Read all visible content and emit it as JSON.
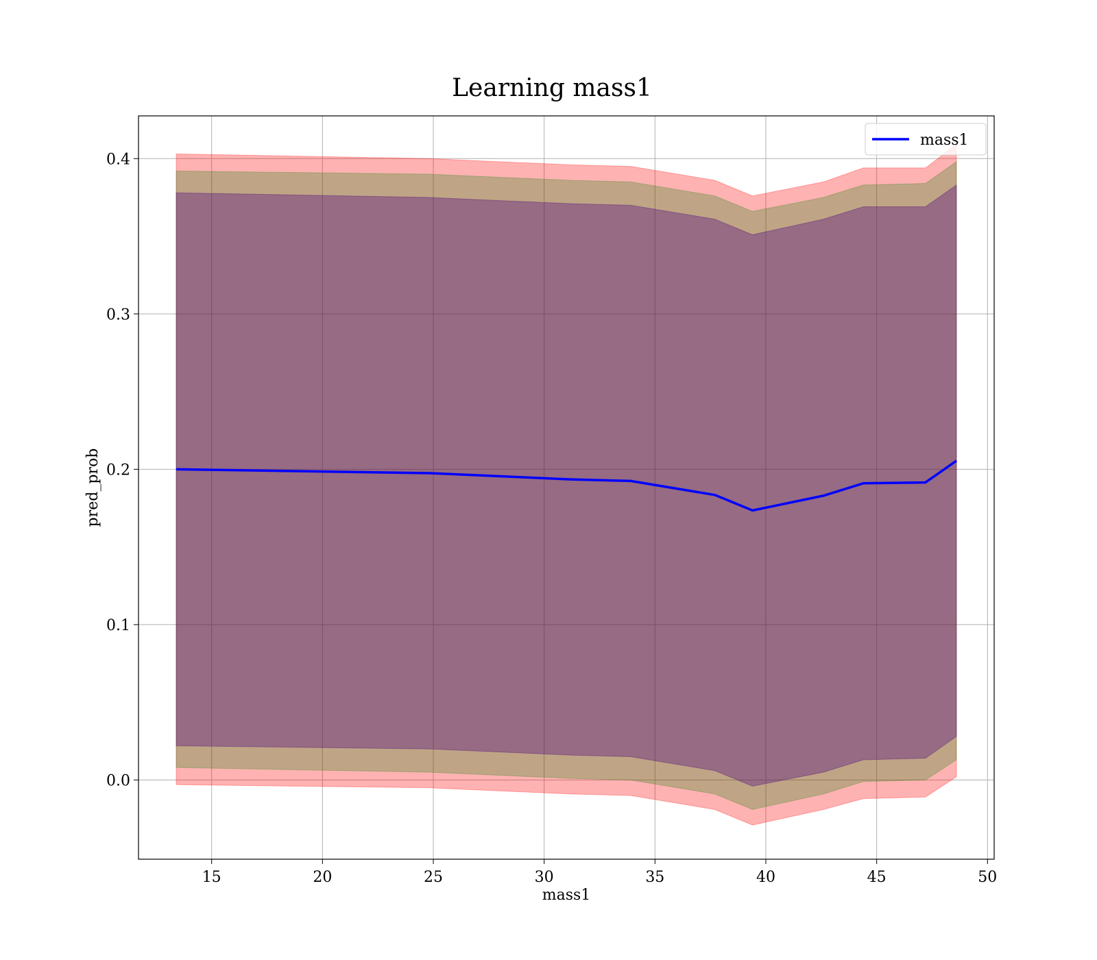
{
  "chart_data": {
    "type": "area",
    "title": "Learning mass1",
    "xlabel": "mass1",
    "ylabel": "pred_prob",
    "xlim": [
      11.7,
      50.3
    ],
    "ylim": [
      -0.051,
      0.4275
    ],
    "xticks": [
      15,
      20,
      25,
      30,
      35,
      40,
      45,
      50
    ],
    "xtick_labels": [
      "15",
      "20",
      "25",
      "30",
      "35",
      "40",
      "45",
      "50"
    ],
    "yticks": [
      0.0,
      0.1,
      0.2,
      0.3,
      0.4
    ],
    "ytick_labels": [
      "0.0",
      "0.1",
      "0.2",
      "0.3",
      "0.4"
    ],
    "grid": true,
    "legend_position": "top-right",
    "x": [
      13.4,
      24.8,
      31.2,
      33.9,
      37.7,
      39.4,
      42.6,
      44.4,
      47.2,
      48.6
    ],
    "series": [
      {
        "name": "mass1",
        "color": "#0000ff",
        "values": [
          0.2,
          0.1975,
          0.1935,
          0.1925,
          0.1835,
          0.1735,
          0.183,
          0.191,
          0.1915,
          0.2055
        ]
      }
    ],
    "bands": [
      {
        "color": "#ff0000",
        "alpha": 0.3,
        "lower": [
          -0.003,
          -0.005,
          -0.009,
          -0.01,
          -0.019,
          -0.029,
          -0.019,
          -0.012,
          -0.011,
          0.002
        ],
        "upper": [
          0.403,
          0.4,
          0.396,
          0.395,
          0.386,
          0.376,
          0.385,
          0.394,
          0.394,
          0.409
        ]
      },
      {
        "color": "#008000",
        "alpha": 0.25,
        "lower": [
          0.008,
          0.005,
          0.001,
          0.0,
          -0.009,
          -0.019,
          -0.009,
          -0.001,
          0.0,
          0.013
        ],
        "upper": [
          0.392,
          0.39,
          0.386,
          0.385,
          0.376,
          0.366,
          0.375,
          0.383,
          0.384,
          0.398
        ]
      },
      {
        "color": "#4b0082",
        "alpha": 0.35,
        "lower": [
          0.022,
          0.02,
          0.016,
          0.015,
          0.006,
          -0.004,
          0.005,
          0.013,
          0.014,
          0.028
        ],
        "upper": [
          0.378,
          0.375,
          0.371,
          0.37,
          0.361,
          0.351,
          0.361,
          0.369,
          0.369,
          0.383
        ]
      }
    ]
  }
}
